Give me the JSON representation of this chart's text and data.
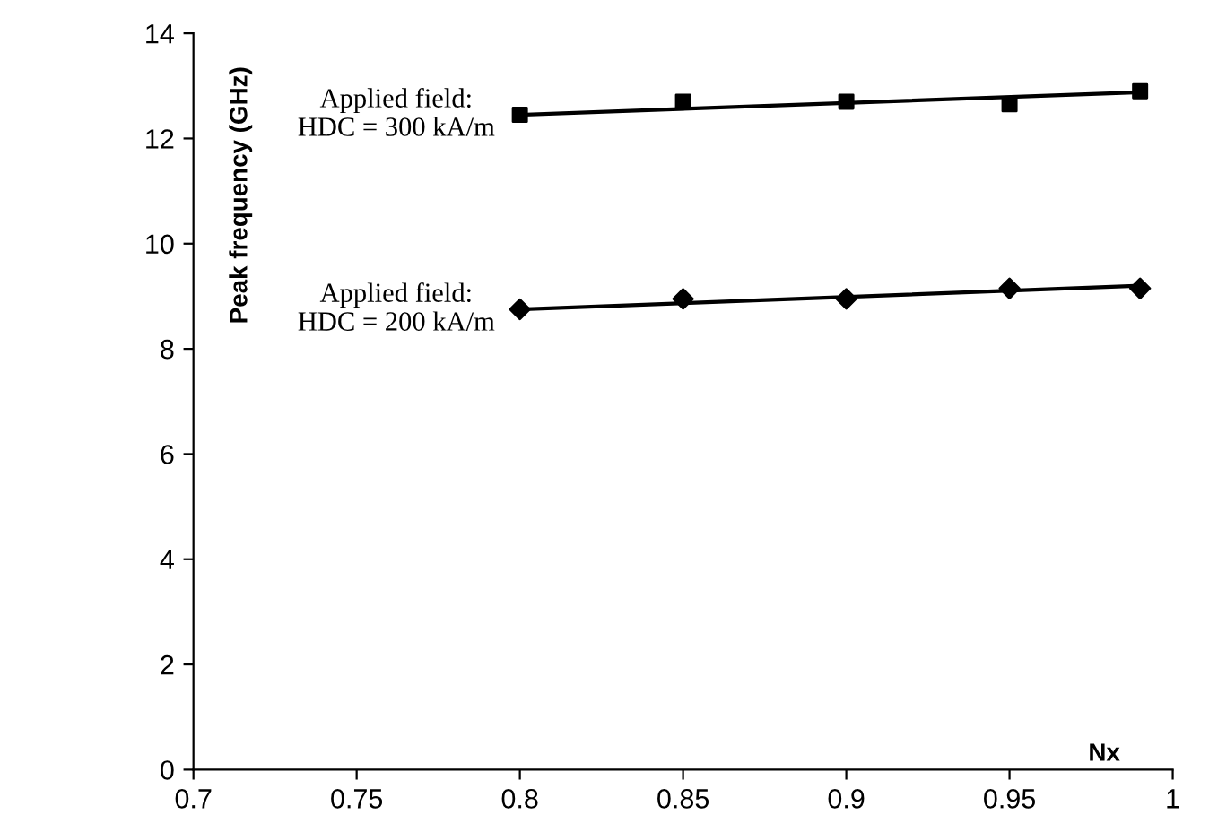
{
  "chart_data": {
    "type": "scatter",
    "xlabel": "Nx",
    "ylabel": "Peak frequency (GHz)",
    "xlim": [
      0.7,
      1
    ],
    "xticks": [
      0.7,
      0.75,
      0.8,
      0.85,
      0.9,
      0.95,
      1
    ],
    "ylim": [
      0,
      14
    ],
    "yticks": [
      0,
      2,
      4,
      6,
      8,
      10,
      12,
      14
    ],
    "grid": false,
    "legend": false,
    "series": [
      {
        "marker": "square",
        "color": "#000000",
        "x": [
          0.8,
          0.85,
          0.9,
          0.95,
          0.99
        ],
        "values": [
          12.45,
          12.7,
          12.7,
          12.65,
          12.9
        ]
      },
      {
        "type": "line",
        "marker": "none",
        "color": "#000000",
        "x": [
          0.8,
          0.99
        ],
        "values": [
          12.45,
          12.88
        ]
      },
      {
        "marker": "diamond",
        "color": "#000000",
        "x": [
          0.8,
          0.85,
          0.9,
          0.95,
          0.99
        ],
        "values": [
          8.75,
          8.95,
          8.95,
          9.15,
          9.15
        ]
      },
      {
        "type": "line",
        "marker": "none",
        "color": "#000000",
        "x": [
          0.8,
          0.99
        ],
        "values": [
          8.75,
          9.2
        ]
      }
    ],
    "annotations": [
      {
        "text": "Applied field:\nHDC = 300 kA/m",
        "x": 0.8,
        "y": 12.45
      },
      {
        "text": "Applied field:\nHDC = 200 kA/m",
        "x": 0.8,
        "y": 8.75
      }
    ]
  }
}
